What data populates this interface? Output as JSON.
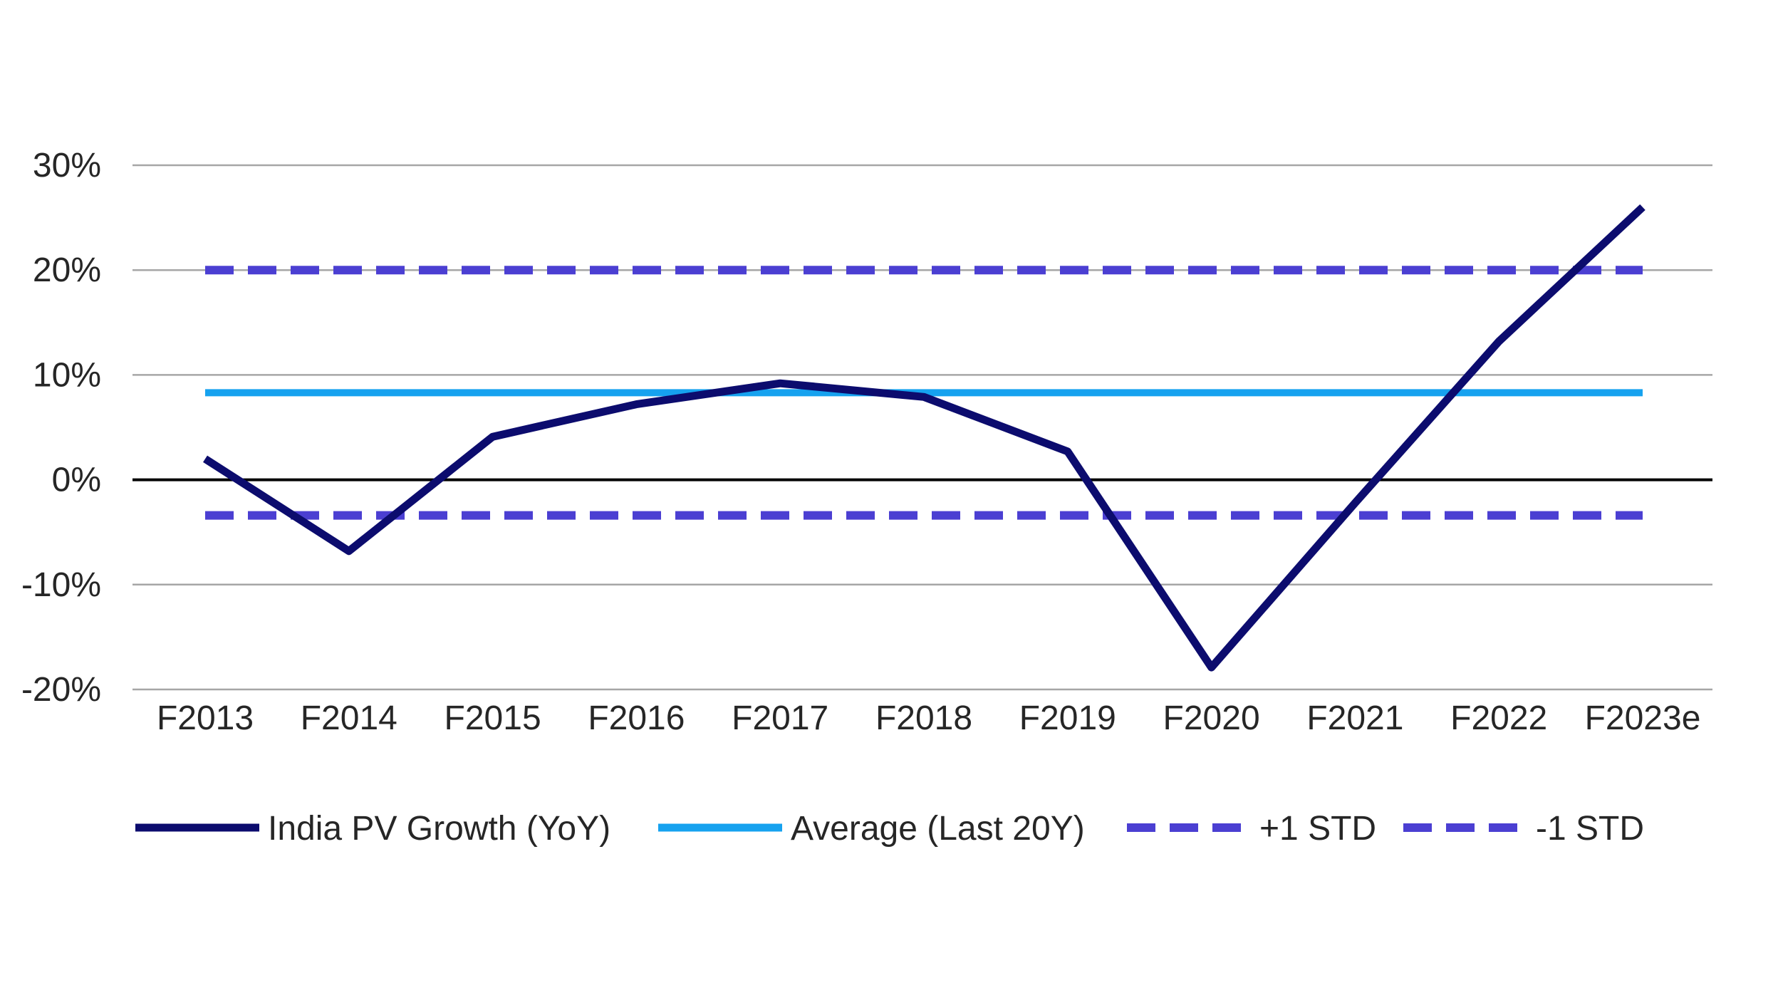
{
  "chart_data": {
    "type": "line",
    "title": "",
    "xlabel": "",
    "ylabel": "",
    "categories": [
      "F2013",
      "F2014",
      "F2015",
      "F2016",
      "F2017",
      "F2018",
      "F2019",
      "F2020",
      "F2021",
      "F2022",
      "F2023e"
    ],
    "ylim": [
      -20,
      30
    ],
    "yticks": [
      30,
      20,
      10,
      0,
      -10,
      -20
    ],
    "ytick_labels": [
      "30%",
      "20%",
      "10%",
      "0%",
      "-10%",
      "-20%"
    ],
    "grid": true,
    "legend_position": "bottom",
    "series": [
      {
        "name": "India PV Growth (YoY)",
        "values": [
          2.0,
          -6.8,
          4.1,
          7.2,
          9.2,
          7.9,
          2.7,
          -17.9,
          -2.2,
          13.2,
          26.0
        ],
        "color": "#0c0c6e",
        "style": "solid"
      },
      {
        "name": "Average (Last 20Y)",
        "values": [
          8.3,
          8.3,
          8.3,
          8.3,
          8.3,
          8.3,
          8.3,
          8.3,
          8.3,
          8.3,
          8.3
        ],
        "color": "#16a2ef",
        "style": "solid"
      },
      {
        "name": "+1 STD",
        "values": [
          20.0,
          20.0,
          20.0,
          20.0,
          20.0,
          20.0,
          20.0,
          20.0,
          20.0,
          20.0,
          20.0
        ],
        "color": "#4b3fd2",
        "style": "dashed"
      },
      {
        "name": "-1 STD",
        "values": [
          -3.4,
          -3.4,
          -3.4,
          -3.4,
          -3.4,
          -3.4,
          -3.4,
          -3.4,
          -3.4,
          -3.4,
          -3.4
        ],
        "color": "#4b3fd2",
        "style": "dashed"
      }
    ],
    "colors": {
      "gridline": "#a6a6a6",
      "zero_line": "#000000",
      "text": "#262626"
    }
  }
}
